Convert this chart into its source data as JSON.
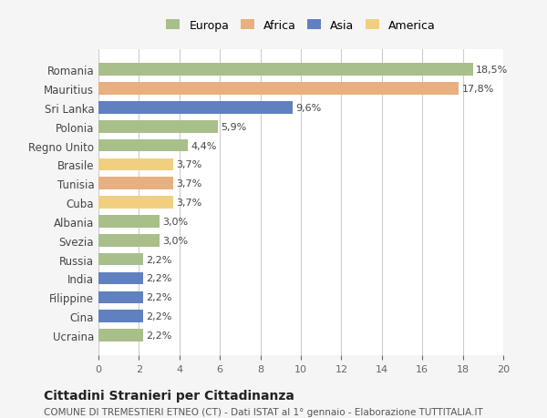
{
  "countries": [
    "Romania",
    "Mauritius",
    "Sri Lanka",
    "Polonia",
    "Regno Unito",
    "Brasile",
    "Tunisia",
    "Cuba",
    "Albania",
    "Svezia",
    "Russia",
    "India",
    "Filippine",
    "Cina",
    "Ucraina"
  ],
  "values": [
    18.5,
    17.8,
    9.6,
    5.9,
    4.4,
    3.7,
    3.7,
    3.7,
    3.0,
    3.0,
    2.2,
    2.2,
    2.2,
    2.2,
    2.2
  ],
  "labels": [
    "18,5%",
    "17,8%",
    "9,6%",
    "5,9%",
    "4,4%",
    "3,7%",
    "3,7%",
    "3,7%",
    "3,0%",
    "3,0%",
    "2,2%",
    "2,2%",
    "2,2%",
    "2,2%",
    "2,2%"
  ],
  "colors": [
    "#a8bf8a",
    "#e8b080",
    "#6080c0",
    "#a8bf8a",
    "#a8bf8a",
    "#f0d080",
    "#e8b080",
    "#f0d080",
    "#a8bf8a",
    "#a8bf8a",
    "#a8bf8a",
    "#6080c0",
    "#6080c0",
    "#6080c0",
    "#a8bf8a"
  ],
  "legend_labels": [
    "Europa",
    "Africa",
    "Asia",
    "America"
  ],
  "legend_colors": [
    "#a8bf8a",
    "#e8b080",
    "#6080c0",
    "#f0d080"
  ],
  "xlim": [
    0,
    20
  ],
  "xticks": [
    0,
    2,
    4,
    6,
    8,
    10,
    12,
    14,
    16,
    18,
    20
  ],
  "title": "Cittadini Stranieri per Cittadinanza",
  "subtitle": "COMUNE DI TREMESTIERI ETNEO (CT) - Dati ISTAT al 1° gennaio - Elaborazione TUTTITALIA.IT",
  "bg_color": "#f5f5f5",
  "bar_bg_color": "#ffffff"
}
